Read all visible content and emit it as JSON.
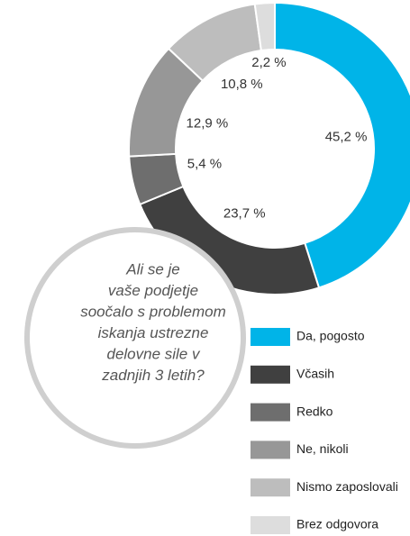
{
  "chart_data": {
    "type": "donut",
    "categories": [
      "Da, pogosto",
      "Včasih",
      "Redko",
      "Ne, nikoli",
      "Nismo zaposlovali",
      "Brez odgovora"
    ],
    "values": [
      45.2,
      23.7,
      5.4,
      12.9,
      10.8,
      2.2
    ],
    "value_labels": [
      "45,2 %",
      "23,7 %",
      "5,4 %",
      "12,9 %",
      "10,8 %",
      "2,2 %"
    ],
    "colors": [
      "#00b4e8",
      "#404040",
      "#6e6e6e",
      "#979797",
      "#bdbdbd",
      "#dddddd"
    ],
    "question": [
      "Ali se je",
      "vaše podjetje",
      "soočalo s problemom",
      "iskanja ustrezne",
      "delovne sile v",
      "zadnjih 3 letih?"
    ],
    "legend": "bottom-right"
  }
}
